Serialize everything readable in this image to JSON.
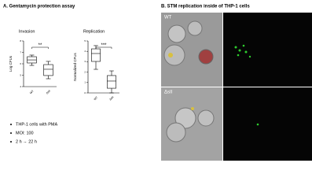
{
  "panel_a": {
    "title": "A. Gentamycin protection assay",
    "notes": [
      "THP-1 cells with PMA",
      "MOI: 100",
      "2 h → 22 h"
    ]
  },
  "panel_b": {
    "title": "B. STM replication inside of THP-1 cells",
    "rows": [
      "WT",
      "ΔsII"
    ]
  },
  "chart_data": [
    {
      "type": "box",
      "title": "Invasion",
      "y_label": "Log CFUs",
      "categories": [
        "WT",
        "ΔsII"
      ],
      "boxes": [
        {
          "min": 5.86,
          "q1": 6.07,
          "median": 6.34,
          "q3": 6.62,
          "max": 6.76
        },
        {
          "min": 4.69,
          "q1": 4.97,
          "median": 5.52,
          "q3": 5.93,
          "max": 6.21
        }
      ],
      "annotation": "**",
      "ylim": [
        4,
        8
      ],
      "yticks": [
        4,
        5,
        6,
        7,
        8
      ]
    },
    {
      "type": "box",
      "title": "Replication",
      "y_label": "Normalized CFUs",
      "categories": [
        "WT",
        "ΔsII"
      ],
      "boxes": [
        {
          "min": 2.27,
          "q1": 3.03,
          "median": 3.79,
          "q3": 4.24,
          "max": 4.55
        },
        {
          "min": 0,
          "q1": 0.45,
          "median": 1.14,
          "q3": 1.67,
          "max": 2.12
        }
      ],
      "annotation": "***",
      "ylim": [
        0,
        5
      ],
      "yticks": [
        0,
        1,
        2,
        3,
        4,
        5
      ]
    }
  ]
}
